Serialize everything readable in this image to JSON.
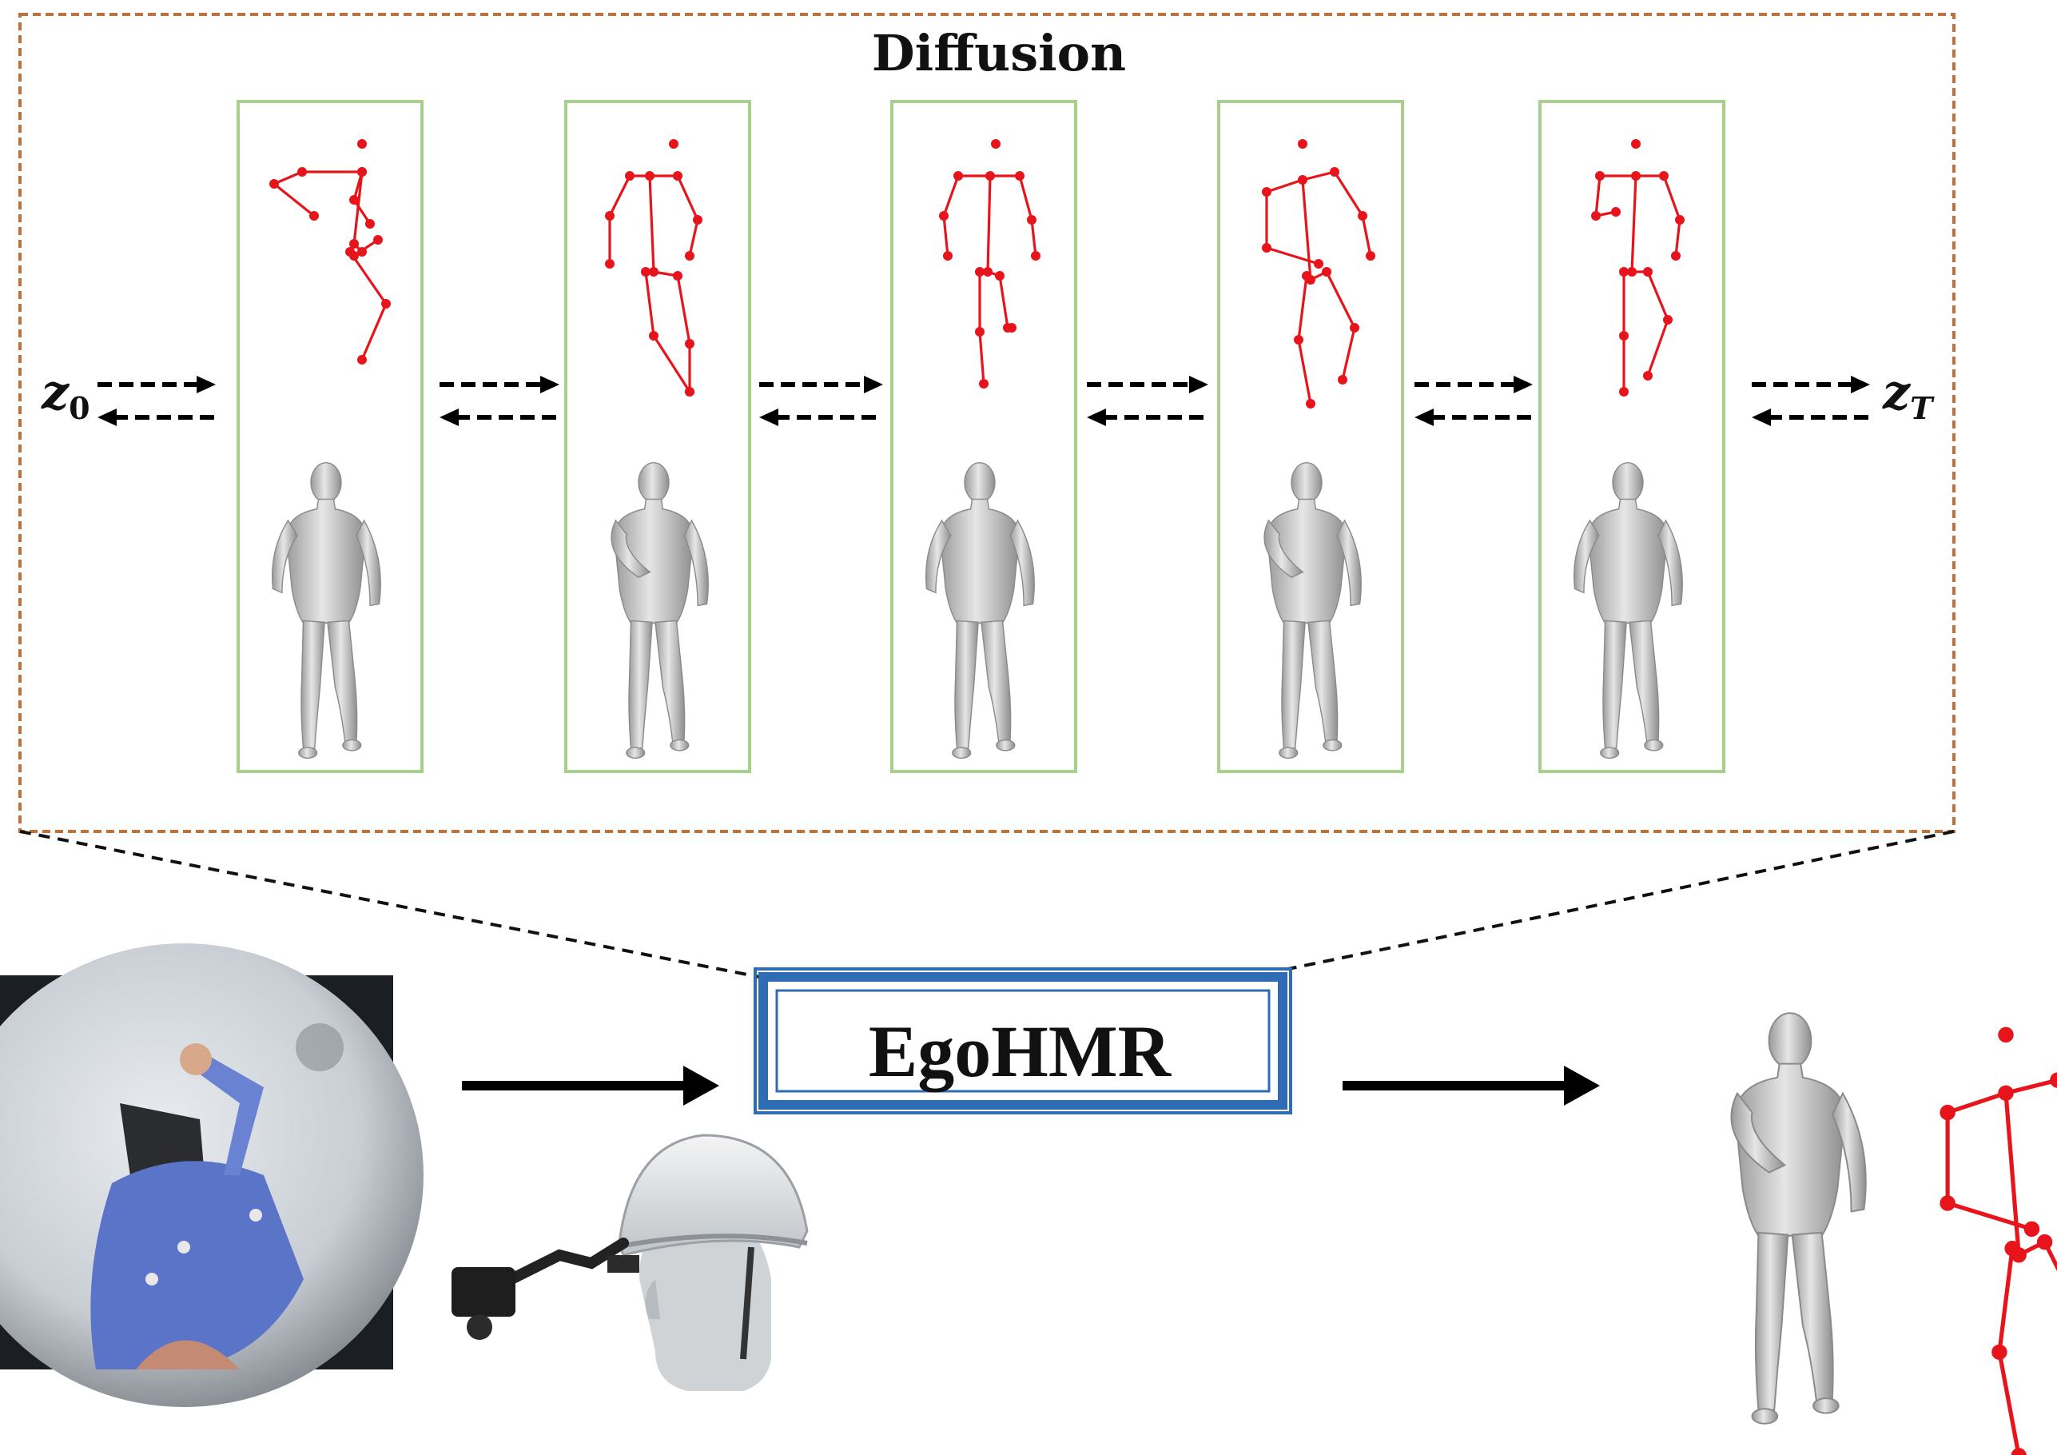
{
  "diffusion": {
    "title": "Diffusion",
    "start_label_base": "z",
    "start_label_sub": "0",
    "end_label_base": "z",
    "end_label_sub": "T",
    "step_count": 5
  },
  "model": {
    "name": "EgoHMR"
  },
  "colors": {
    "diffusion_border": "#c0703a",
    "step_frame": "#a8d08d",
    "skeleton": "#e8141c",
    "model_box": "#2e6db4",
    "mesh": "#c8c8c8",
    "arrow": "#000000"
  },
  "icons": {
    "input_image": "fisheye-egocentric-photo",
    "device": "helmet-mounted-camera",
    "output_mesh": "human-mesh",
    "output_skeleton": "pose-skeleton"
  }
}
